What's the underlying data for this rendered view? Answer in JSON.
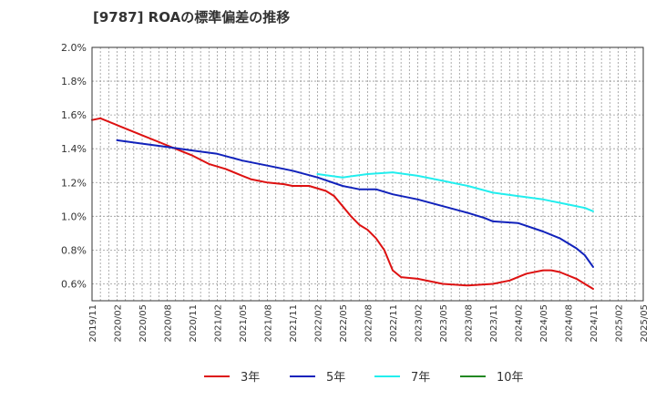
{
  "chart_data": {
    "type": "line",
    "title": "[9787]  ROAの標準偏差の推移",
    "xlabel": "",
    "ylabel": "",
    "ylim": [
      0.5,
      2.0
    ],
    "xlim": [
      "2019/11",
      "2025/05"
    ],
    "y_ticks": [
      "0.6%",
      "0.8%",
      "1.0%",
      "1.2%",
      "1.4%",
      "1.6%",
      "1.8%",
      "2.0%"
    ],
    "y_tick_values": [
      0.6,
      0.8,
      1.0,
      1.2,
      1.4,
      1.6,
      1.8,
      2.0
    ],
    "x_ticks": [
      "2019/11",
      "2020/02",
      "2020/05",
      "2020/08",
      "2020/11",
      "2021/02",
      "2021/05",
      "2021/08",
      "2021/11",
      "2022/02",
      "2022/05",
      "2022/08",
      "2022/11",
      "2023/02",
      "2023/05",
      "2023/08",
      "2023/11",
      "2024/02",
      "2024/05",
      "2024/08",
      "2024/11",
      "2025/02",
      "2025/05"
    ],
    "grid": true,
    "legend_position": "bottom",
    "series": [
      {
        "name": "3年",
        "color": "#dd1111",
        "points": [
          [
            "2019/11",
            1.57
          ],
          [
            "2019/12",
            1.58
          ],
          [
            "2020/02",
            1.54
          ],
          [
            "2020/05",
            1.48
          ],
          [
            "2020/08",
            1.42
          ],
          [
            "2020/10",
            1.38
          ],
          [
            "2020/11",
            1.36
          ],
          [
            "2021/01",
            1.31
          ],
          [
            "2021/03",
            1.28
          ],
          [
            "2021/05",
            1.24
          ],
          [
            "2021/06",
            1.22
          ],
          [
            "2021/08",
            1.2
          ],
          [
            "2021/10",
            1.19
          ],
          [
            "2021/11",
            1.18
          ],
          [
            "2022/01",
            1.18
          ],
          [
            "2022/03",
            1.15
          ],
          [
            "2022/04",
            1.12
          ],
          [
            "2022/05",
            1.06
          ],
          [
            "2022/06",
            1.0
          ],
          [
            "2022/07",
            0.95
          ],
          [
            "2022/08",
            0.92
          ],
          [
            "2022/09",
            0.87
          ],
          [
            "2022/10",
            0.8
          ],
          [
            "2022/11",
            0.68
          ],
          [
            "2022/12",
            0.64
          ],
          [
            "2023/02",
            0.63
          ],
          [
            "2023/05",
            0.6
          ],
          [
            "2023/08",
            0.59
          ],
          [
            "2023/11",
            0.6
          ],
          [
            "2024/01",
            0.62
          ],
          [
            "2024/03",
            0.66
          ],
          [
            "2024/05",
            0.68
          ],
          [
            "2024/06",
            0.68
          ],
          [
            "2024/07",
            0.67
          ],
          [
            "2024/09",
            0.63
          ],
          [
            "2024/11",
            0.57
          ]
        ]
      },
      {
        "name": "5年",
        "color": "#1122bb",
        "points": [
          [
            "2020/02",
            1.45
          ],
          [
            "2020/05",
            1.43
          ],
          [
            "2020/08",
            1.41
          ],
          [
            "2020/11",
            1.39
          ],
          [
            "2021/02",
            1.37
          ],
          [
            "2021/05",
            1.33
          ],
          [
            "2021/08",
            1.3
          ],
          [
            "2021/11",
            1.27
          ],
          [
            "2022/02",
            1.23
          ],
          [
            "2022/05",
            1.18
          ],
          [
            "2022/07",
            1.16
          ],
          [
            "2022/09",
            1.16
          ],
          [
            "2022/11",
            1.13
          ],
          [
            "2023/02",
            1.1
          ],
          [
            "2023/05",
            1.06
          ],
          [
            "2023/08",
            1.02
          ],
          [
            "2023/10",
            0.99
          ],
          [
            "2023/11",
            0.97
          ],
          [
            "2024/02",
            0.96
          ],
          [
            "2024/05",
            0.91
          ],
          [
            "2024/07",
            0.87
          ],
          [
            "2024/09",
            0.81
          ],
          [
            "2024/10",
            0.77
          ],
          [
            "2024/11",
            0.7
          ]
        ]
      },
      {
        "name": "7年",
        "color": "#22eeee",
        "points": [
          [
            "2022/02",
            1.25
          ],
          [
            "2022/05",
            1.23
          ],
          [
            "2022/08",
            1.25
          ],
          [
            "2022/11",
            1.26
          ],
          [
            "2023/02",
            1.24
          ],
          [
            "2023/05",
            1.21
          ],
          [
            "2023/08",
            1.18
          ],
          [
            "2023/11",
            1.14
          ],
          [
            "2024/02",
            1.12
          ],
          [
            "2024/05",
            1.1
          ],
          [
            "2024/08",
            1.07
          ],
          [
            "2024/10",
            1.05
          ],
          [
            "2024/11",
            1.03
          ]
        ]
      },
      {
        "name": "10年",
        "color": "#228822",
        "points": []
      }
    ]
  }
}
